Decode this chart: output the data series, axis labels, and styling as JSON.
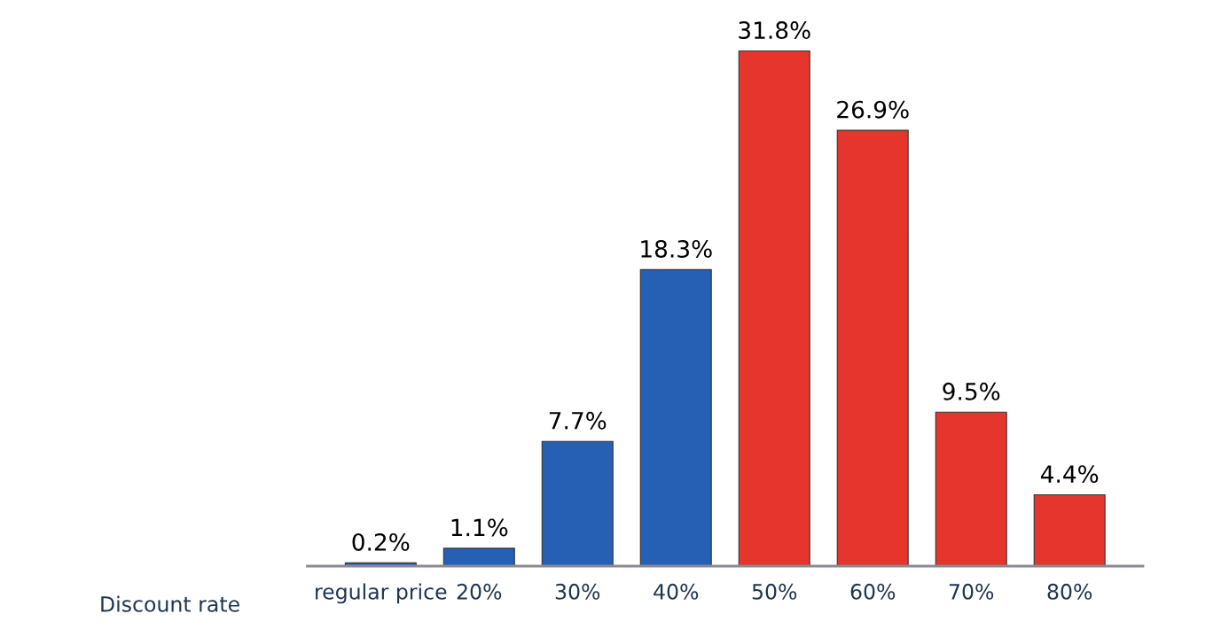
{
  "chart_data": {
    "type": "bar",
    "xlabel": "Discount rate",
    "categories": [
      "regular price",
      "20%",
      "30%",
      "40%",
      "50%",
      "60%",
      "70%",
      "80%"
    ],
    "values": [
      0.2,
      1.1,
      7.7,
      18.3,
      31.8,
      26.9,
      9.5,
      4.4
    ],
    "value_labels": [
      "0.2%",
      "1.1%",
      "7.7%",
      "18.3%",
      "31.8%",
      "26.9%",
      "9.5%",
      "4.4%"
    ],
    "colors": [
      "#2560b5",
      "#2560b5",
      "#2560b5",
      "#2560b5",
      "#e5352c",
      "#e5352c",
      "#e5352c",
      "#e5352c"
    ],
    "grid": false,
    "legend": false
  }
}
